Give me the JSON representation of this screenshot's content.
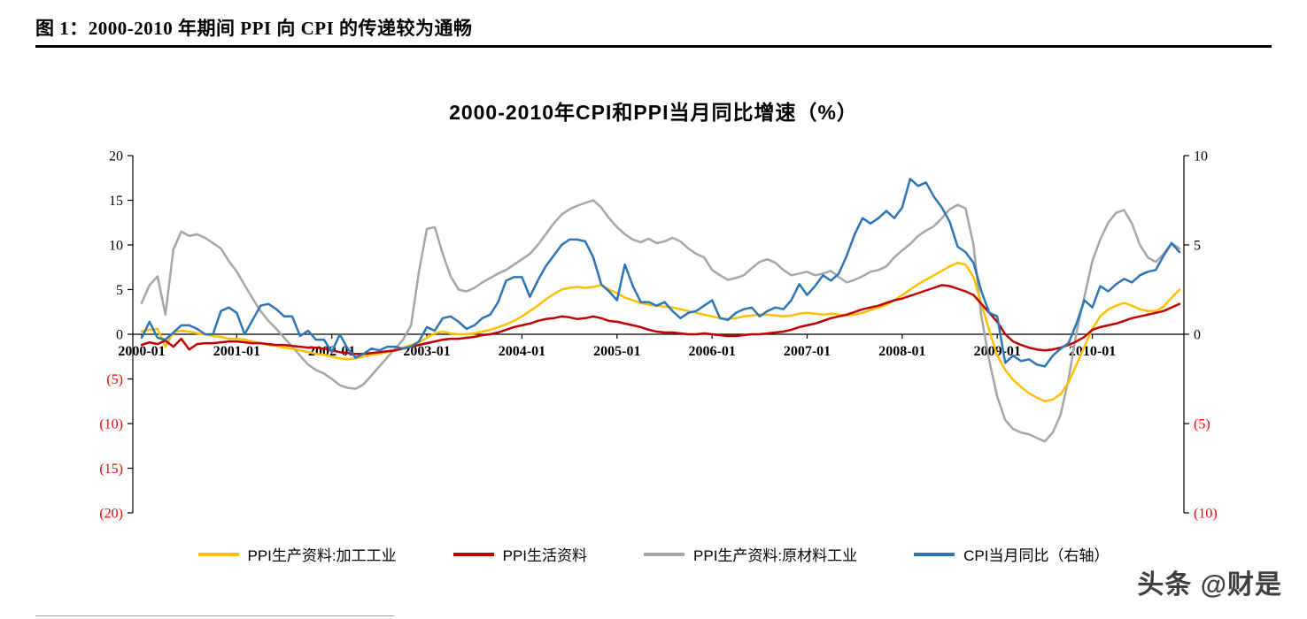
{
  "header": {
    "figure_title": "图 1：2000-2010 年期间 PPI 向 CPI 的传递较为通畅"
  },
  "footer": {
    "watermark": "头条 @财是"
  },
  "chart_data": {
    "type": "line",
    "title": "2000-2010年CPI和PPI当月同比增速（%）",
    "x_start": "2000-01",
    "x_end": "2010-12",
    "x_tick_labels": [
      "2000-01",
      "2001-01",
      "2002-01",
      "2003-01",
      "2004-01",
      "2005-01",
      "2006-01",
      "2007-01",
      "2008-01",
      "2009-01",
      "2010-01"
    ],
    "y_left": {
      "min": -20,
      "max": 20,
      "ticks": [
        "20",
        "15",
        "10",
        "5",
        "0",
        "(5)",
        "(10)",
        "(15)",
        "(20)"
      ]
    },
    "y_right": {
      "min": -10,
      "max": 10,
      "ticks": [
        "10",
        "5",
        "0",
        "(5)",
        "(10)"
      ]
    },
    "negative_tick_color": "#FF0000",
    "axis_color": "#000000",
    "grid": false,
    "legend_position": "bottom",
    "series": [
      {
        "name": "PPI生产资料:加工工业",
        "color": "#FFC000",
        "axis": "left",
        "values": [
          0.3,
          0.5,
          0.6,
          -1.4,
          0.2,
          0.4,
          0.3,
          0.1,
          0.0,
          -0.2,
          -0.3,
          -0.5,
          -0.5,
          -0.6,
          -0.8,
          -1.0,
          -1.2,
          -1.3,
          -1.5,
          -1.6,
          -1.8,
          -2.0,
          -2.2,
          -2.3,
          -2.5,
          -2.7,
          -2.8,
          -2.7,
          -2.5,
          -2.3,
          -2.2,
          -2.0,
          -1.8,
          -1.5,
          -1.2,
          -0.9,
          -0.4,
          0.1,
          0.3,
          0.1,
          0.0,
          0.0,
          0.1,
          0.3,
          0.5,
          0.8,
          1.1,
          1.5,
          2.0,
          2.6,
          3.2,
          3.9,
          4.5,
          5.0,
          5.2,
          5.3,
          5.2,
          5.3,
          5.5,
          5.0,
          4.6,
          4.1,
          3.8,
          3.5,
          3.3,
          3.2,
          3.1,
          3.0,
          2.8,
          2.6,
          2.4,
          2.2,
          2.0,
          1.8,
          1.7,
          1.8,
          2.0,
          2.1,
          2.2,
          2.2,
          2.1,
          2.0,
          2.1,
          2.3,
          2.4,
          2.3,
          2.2,
          2.3,
          2.2,
          2.1,
          2.2,
          2.4,
          2.7,
          3.0,
          3.3,
          3.8,
          4.4,
          5.0,
          5.6,
          6.1,
          6.6,
          7.1,
          7.6,
          8.0,
          7.8,
          6.4,
          3.4,
          0.4,
          -2.4,
          -4.0,
          -5.1,
          -5.9,
          -6.6,
          -7.1,
          -7.5,
          -7.3,
          -6.7,
          -5.4,
          -3.4,
          -1.4,
          0.6,
          2.0,
          2.8,
          3.2,
          3.5,
          3.2,
          2.8,
          2.6,
          2.6,
          3.1,
          4.1,
          5.0
        ]
      },
      {
        "name": "PPI生活资料",
        "color": "#C00000",
        "axis": "left",
        "values": [
          -1.2,
          -0.9,
          -1.1,
          -0.7,
          -1.4,
          -0.5,
          -1.7,
          -1.1,
          -1.0,
          -1.0,
          -0.9,
          -0.8,
          -0.8,
          -0.9,
          -1.0,
          -1.0,
          -1.1,
          -1.2,
          -1.2,
          -1.3,
          -1.4,
          -1.5,
          -1.5,
          -1.6,
          -1.8,
          -2.0,
          -2.1,
          -2.2,
          -2.2,
          -2.1,
          -2.0,
          -1.9,
          -1.8,
          -1.6,
          -1.4,
          -1.2,
          -1.0,
          -0.8,
          -0.6,
          -0.5,
          -0.5,
          -0.4,
          -0.3,
          -0.1,
          0.0,
          0.2,
          0.5,
          0.8,
          1.0,
          1.2,
          1.5,
          1.7,
          1.8,
          2.0,
          1.9,
          1.7,
          1.8,
          2.0,
          1.8,
          1.5,
          1.4,
          1.2,
          1.0,
          0.8,
          0.5,
          0.3,
          0.2,
          0.2,
          0.1,
          0.0,
          0.0,
          0.1,
          0.0,
          -0.1,
          -0.2,
          -0.2,
          -0.1,
          0.0,
          0.0,
          0.1,
          0.2,
          0.3,
          0.5,
          0.8,
          1.0,
          1.2,
          1.5,
          1.8,
          2.0,
          2.2,
          2.5,
          2.8,
          3.0,
          3.2,
          3.5,
          3.8,
          4.0,
          4.3,
          4.6,
          4.9,
          5.2,
          5.5,
          5.4,
          5.1,
          4.8,
          4.4,
          3.4,
          2.4,
          1.4,
          0.0,
          -0.8,
          -1.2,
          -1.5,
          -1.7,
          -1.8,
          -1.7,
          -1.5,
          -1.2,
          -0.8,
          -0.3,
          0.5,
          0.8,
          1.0,
          1.2,
          1.5,
          1.8,
          2.0,
          2.2,
          2.4,
          2.6,
          3.0,
          3.4
        ]
      },
      {
        "name": "PPI生产资料:原材料工业",
        "color": "#A6A6A6",
        "axis": "left",
        "values": [
          3.5,
          5.5,
          6.5,
          2.2,
          9.5,
          11.5,
          11.0,
          11.2,
          10.8,
          10.2,
          9.6,
          8.2,
          7.0,
          5.5,
          4.0,
          2.6,
          1.5,
          0.6,
          -0.4,
          -1.4,
          -2.4,
          -3.4,
          -4.0,
          -4.4,
          -5.0,
          -5.7,
          -6.0,
          -6.1,
          -5.6,
          -4.6,
          -3.6,
          -2.6,
          -1.6,
          -0.6,
          1.0,
          7.0,
          11.8,
          12.0,
          9.0,
          6.5,
          5.0,
          4.8,
          5.2,
          5.8,
          6.3,
          6.8,
          7.2,
          7.8,
          8.4,
          9.0,
          10.0,
          11.2,
          12.4,
          13.4,
          14.0,
          14.4,
          14.7,
          15.0,
          14.2,
          13.0,
          12.0,
          11.2,
          10.6,
          10.3,
          10.7,
          10.2,
          10.4,
          10.8,
          10.4,
          9.6,
          9.0,
          8.6,
          7.2,
          6.6,
          6.1,
          6.3,
          6.6,
          7.4,
          8.1,
          8.4,
          8.0,
          7.2,
          6.6,
          6.8,
          7.0,
          6.6,
          6.8,
          7.1,
          6.4,
          5.8,
          6.1,
          6.5,
          7.0,
          7.2,
          7.6,
          8.6,
          9.4,
          10.1,
          11.0,
          11.6,
          12.1,
          13.0,
          14.0,
          14.5,
          14.1,
          10.0,
          2.0,
          -3.0,
          -7.0,
          -9.6,
          -10.6,
          -11.0,
          -11.2,
          -11.6,
          -12.0,
          -11.0,
          -9.0,
          -5.0,
          0.2,
          4.2,
          8.2,
          10.6,
          12.5,
          13.6,
          13.9,
          12.4,
          10.0,
          8.6,
          8.1,
          9.0,
          10.2,
          9.6
        ]
      },
      {
        "name": "CPI当月同比（右轴）",
        "color": "#2E75B6",
        "axis": "right",
        "values": [
          -0.2,
          0.7,
          -0.2,
          -0.3,
          0.1,
          0.5,
          0.5,
          0.3,
          0.0,
          0.0,
          1.3,
          1.5,
          1.2,
          0.0,
          0.8,
          1.6,
          1.7,
          1.4,
          1.0,
          1.0,
          -0.1,
          0.2,
          -0.3,
          -0.3,
          -1.0,
          0.0,
          -0.8,
          -1.3,
          -1.1,
          -0.8,
          -0.9,
          -0.7,
          -0.7,
          -0.8,
          -0.7,
          -0.4,
          0.4,
          0.2,
          0.9,
          1.0,
          0.7,
          0.3,
          0.5,
          0.9,
          1.1,
          1.8,
          3.0,
          3.2,
          3.2,
          2.1,
          3.0,
          3.8,
          4.4,
          5.0,
          5.3,
          5.3,
          5.2,
          4.3,
          2.8,
          2.4,
          1.9,
          3.9,
          2.7,
          1.8,
          1.8,
          1.6,
          1.8,
          1.3,
          0.9,
          1.2,
          1.3,
          1.6,
          1.9,
          0.9,
          0.8,
          1.2,
          1.4,
          1.5,
          1.0,
          1.3,
          1.5,
          1.4,
          1.9,
          2.8,
          2.2,
          2.7,
          3.3,
          3.0,
          3.4,
          4.4,
          5.6,
          6.5,
          6.2,
          6.5,
          6.9,
          6.5,
          7.1,
          8.7,
          8.3,
          8.5,
          7.7,
          7.1,
          6.3,
          4.9,
          4.6,
          4.0,
          2.4,
          1.2,
          1.0,
          -1.6,
          -1.2,
          -1.5,
          -1.4,
          -1.7,
          -1.8,
          -1.2,
          -0.8,
          -0.5,
          0.6,
          1.9,
          1.5,
          2.7,
          2.4,
          2.8,
          3.1,
          2.9,
          3.3,
          3.5,
          3.6,
          4.4,
          5.1,
          4.6
        ]
      }
    ]
  }
}
